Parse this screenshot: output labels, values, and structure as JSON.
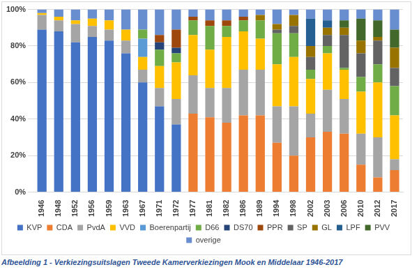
{
  "chart_data": {
    "type": "bar",
    "caption": "Afbeelding 1 - Verkiezingsuitslagen Tweede Kamerverkiezingen Mook en Middelaar 1946-2017",
    "categories": [
      "1946",
      "1948",
      "1952",
      "1956",
      "1959",
      "1963",
      "1967",
      "1971",
      "1972",
      "1977",
      "1981",
      "1982",
      "1986",
      "1989",
      "1994",
      "1998",
      "2002",
      "2003",
      "2006",
      "2010",
      "2012",
      "2017"
    ],
    "stacked": true,
    "grid": true,
    "legend": "bottom",
    "ylim": [
      0,
      100
    ],
    "yticks": [
      {
        "value": 0,
        "label": "0%"
      },
      {
        "value": 20,
        "label": "20%"
      },
      {
        "value": 40,
        "label": "40%"
      },
      {
        "value": 60,
        "label": "60%"
      },
      {
        "value": 80,
        "label": "80%"
      },
      {
        "value": 100,
        "label": "100%"
      }
    ],
    "series": [
      {
        "name": "KVP",
        "color": "#4472c4",
        "values": [
          89,
          88,
          82,
          85,
          83,
          76,
          60,
          47,
          37,
          0,
          0,
          0,
          0,
          0,
          0,
          0,
          0,
          0,
          0,
          0,
          0,
          0
        ]
      },
      {
        "name": "CDA",
        "color": "#ed7d31",
        "values": [
          0,
          0,
          0,
          0,
          0,
          0,
          0,
          0,
          0,
          43,
          41,
          38,
          42,
          42,
          27,
          20,
          30,
          33,
          32,
          15,
          8,
          12
        ]
      },
      {
        "name": "PvdA",
        "color": "#a5a5a5",
        "values": [
          8,
          6,
          10,
          6,
          6,
          7,
          7,
          10,
          14,
          21,
          16,
          19,
          25,
          25,
          20,
          27,
          13,
          23,
          19,
          17,
          22,
          6
        ]
      },
      {
        "name": "VVD",
        "color": "#ffc000",
        "values": [
          1,
          2,
          2,
          4,
          5,
          6,
          7,
          12,
          20,
          22,
          21,
          28,
          21,
          17,
          23,
          27,
          19,
          20,
          16,
          23,
          30,
          24
        ]
      },
      {
        "name": "Boerenpartij",
        "color": "#5b9bd5",
        "values": [
          0,
          0,
          0,
          0,
          0,
          0,
          10,
          0,
          0,
          0,
          0,
          0,
          0,
          0,
          0,
          0,
          0,
          0,
          0,
          0,
          0,
          0
        ]
      },
      {
        "name": "D66",
        "color": "#70ad47",
        "values": [
          0,
          0,
          0,
          0,
          0,
          0,
          5,
          9,
          5,
          8,
          13,
          6,
          6,
          10,
          17,
          13,
          5,
          4,
          1,
          8,
          10,
          16
        ]
      },
      {
        "name": "DS70",
        "color": "#264478",
        "values": [
          0,
          0,
          0,
          0,
          0,
          0,
          0,
          4,
          3,
          0,
          0,
          0,
          0,
          0,
          0,
          0,
          0,
          0,
          0,
          0,
          0,
          0
        ]
      },
      {
        "name": "PPR",
        "color": "#9e480e",
        "values": [
          0,
          0,
          0,
          0,
          0,
          0,
          0,
          4,
          10,
          2,
          3,
          3,
          2,
          0,
          0,
          0,
          0,
          0,
          0,
          0,
          0,
          0
        ]
      },
      {
        "name": "SP",
        "color": "#636363",
        "values": [
          0,
          0,
          0,
          0,
          0,
          0,
          0,
          0,
          0,
          0,
          0,
          0,
          0,
          0,
          2,
          4,
          7,
          6,
          18,
          13,
          13,
          10
        ]
      },
      {
        "name": "GL",
        "color": "#997300",
        "values": [
          0,
          0,
          0,
          0,
          0,
          0,
          0,
          0,
          0,
          0,
          0,
          0,
          0,
          3,
          3,
          6,
          6,
          4,
          4,
          7,
          2,
          11
        ]
      },
      {
        "name": "LPF",
        "color": "#255e91",
        "values": [
          0,
          0,
          0,
          0,
          0,
          0,
          0,
          0,
          0,
          0,
          0,
          0,
          0,
          0,
          0,
          0,
          15,
          4,
          0,
          0,
          0,
          0
        ]
      },
      {
        "name": "PVV",
        "color": "#43682b",
        "values": [
          0,
          0,
          0,
          0,
          0,
          0,
          0,
          0,
          0,
          0,
          0,
          0,
          0,
          0,
          0,
          0,
          0,
          0,
          4,
          12,
          9,
          10
        ]
      },
      {
        "name": "overige",
        "color": "#698ed0",
        "values": [
          2,
          4,
          6,
          5,
          6,
          11,
          11,
          14,
          11,
          4,
          6,
          6,
          4,
          3,
          8,
          3,
          5,
          6,
          6,
          5,
          6,
          11
        ]
      }
    ]
  }
}
